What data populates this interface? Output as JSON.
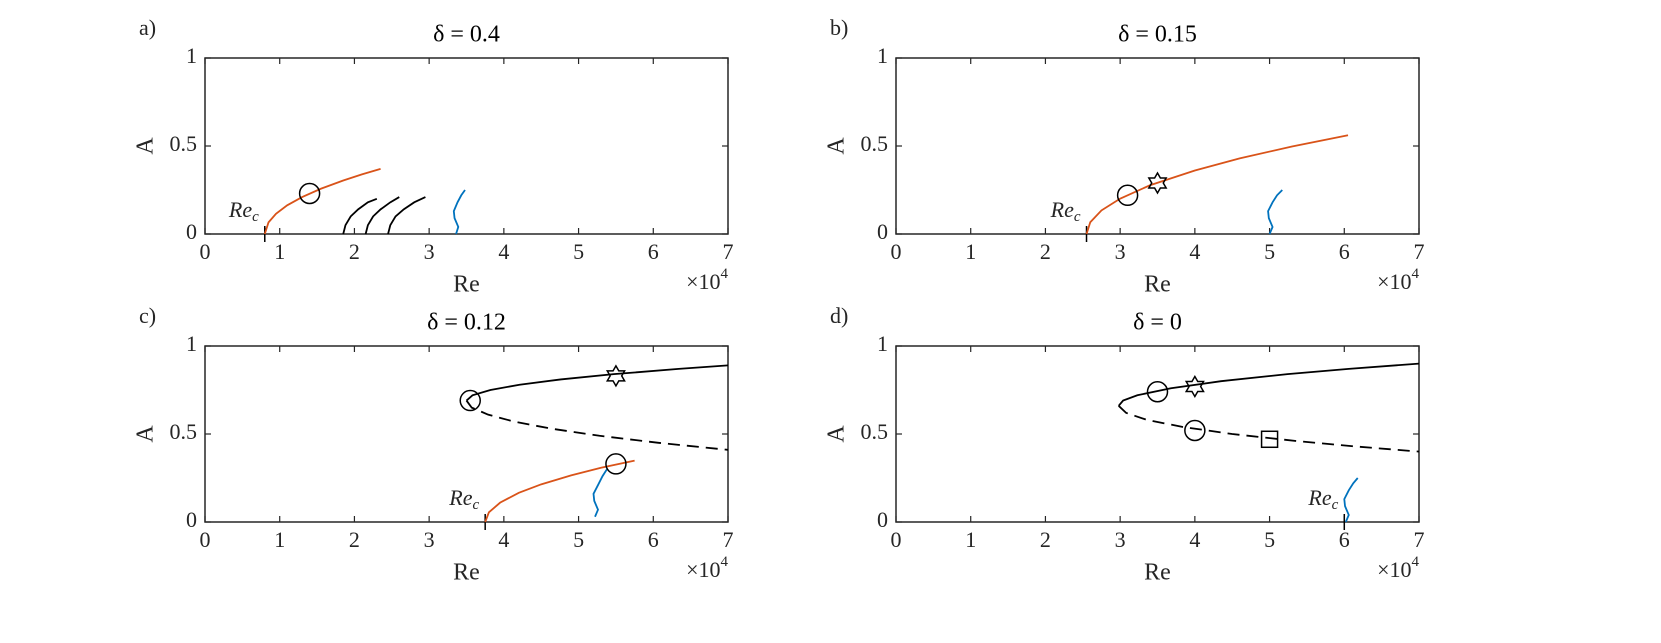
{
  "chart_data": [
    {
      "type": "line",
      "panel_label": "a)",
      "title": "δ = 0.4",
      "xlabel": "Re",
      "ylabel": "A",
      "x_multiplier": {
        "base": "×10",
        "exp": "4"
      },
      "xlim": [
        0,
        7
      ],
      "xticks": [
        0,
        1,
        2,
        3,
        4,
        5,
        6,
        7
      ],
      "ylim": [
        0,
        1
      ],
      "yticks": [
        0,
        0.5,
        1
      ],
      "critical": {
        "x": 0.8,
        "label": "Re",
        "sub": "c"
      },
      "series": [
        {
          "color": "#d95319",
          "x": [
            0.8,
            0.85,
            0.95,
            1.1,
            1.3,
            1.55,
            1.85,
            2.1,
            2.35
          ],
          "values": [
            0,
            0.066,
            0.115,
            0.163,
            0.21,
            0.257,
            0.304,
            0.339,
            0.37
          ]
        },
        {
          "color": "#000000",
          "x": [
            1.85,
            1.88,
            1.95,
            2.05,
            2.18,
            2.3
          ],
          "values": [
            0,
            0.05,
            0.1,
            0.14,
            0.18,
            0.2
          ]
        },
        {
          "color": "#000000",
          "x": [
            2.15,
            2.18,
            2.25,
            2.35,
            2.48,
            2.6
          ],
          "values": [
            0,
            0.05,
            0.1,
            0.14,
            0.18,
            0.21
          ]
        },
        {
          "color": "#000000",
          "x": [
            2.45,
            2.48,
            2.55,
            2.66,
            2.8,
            2.95
          ],
          "values": [
            0,
            0.05,
            0.1,
            0.14,
            0.18,
            0.21
          ]
        },
        {
          "color": "#0072bd",
          "x": [
            3.36,
            3.39,
            3.34,
            3.33,
            3.38,
            3.43,
            3.48
          ],
          "values": [
            0,
            0.04,
            0.09,
            0.13,
            0.18,
            0.22,
            0.25
          ]
        },
        {
          "color": "#000000",
          "marker": "circle",
          "x": [
            1.4
          ],
          "values": [
            0.23
          ]
        }
      ]
    },
    {
      "type": "line",
      "panel_label": "b)",
      "title": "δ = 0.15",
      "xlabel": "Re",
      "ylabel": "A",
      "x_multiplier": {
        "base": "×10",
        "exp": "4"
      },
      "xlim": [
        0,
        7
      ],
      "xticks": [
        0,
        1,
        2,
        3,
        4,
        5,
        6,
        7
      ],
      "ylim": [
        0,
        1
      ],
      "yticks": [
        0,
        0.5,
        1
      ],
      "critical": {
        "x": 2.55,
        "label": "Re",
        "sub": "c"
      },
      "series": [
        {
          "color": "#d95319",
          "x": [
            2.55,
            2.6,
            2.75,
            3.0,
            3.4,
            4.0,
            4.6,
            5.3,
            6.05
          ],
          "values": [
            0,
            0.067,
            0.134,
            0.201,
            0.277,
            0.361,
            0.43,
            0.497,
            0.561
          ]
        },
        {
          "color": "#0072bd",
          "x": [
            5.0,
            5.04,
            4.99,
            4.98,
            5.04,
            5.1,
            5.17
          ],
          "values": [
            0,
            0.04,
            0.09,
            0.13,
            0.18,
            0.22,
            0.25
          ]
        },
        {
          "color": "#000000",
          "marker": "circle",
          "x": [
            3.1
          ],
          "values": [
            0.22
          ]
        },
        {
          "color": "#000000",
          "marker": "star",
          "x": [
            3.5
          ],
          "values": [
            0.29
          ]
        }
      ]
    },
    {
      "type": "line",
      "panel_label": "c)",
      "title": "δ = 0.12",
      "xlabel": "Re",
      "ylabel": "A",
      "x_multiplier": {
        "base": "×10",
        "exp": "4"
      },
      "xlim": [
        0,
        7
      ],
      "xticks": [
        0,
        1,
        2,
        3,
        4,
        5,
        6,
        7
      ],
      "ylim": [
        0,
        1
      ],
      "yticks": [
        0,
        0.5,
        1
      ],
      "critical": {
        "x": 3.75,
        "label": "Re",
        "sub": "c"
      },
      "series": [
        {
          "color": "#000000",
          "x": [
            3.5,
            3.58,
            3.82,
            4.21,
            4.76,
            5.47,
            6.34,
            7.0
          ],
          "values": [
            0.69,
            0.72,
            0.75,
            0.78,
            0.81,
            0.84,
            0.87,
            0.89
          ]
        },
        {
          "color": "#000000",
          "dash": true,
          "x": [
            3.5,
            3.57,
            3.79,
            4.14,
            4.64,
            5.28,
            6.07,
            7.0
          ],
          "values": [
            0.69,
            0.65,
            0.61,
            0.57,
            0.53,
            0.49,
            0.45,
            0.41
          ]
        },
        {
          "color": "#d95319",
          "x": [
            3.75,
            3.8,
            3.95,
            4.2,
            4.5,
            4.9,
            5.3,
            5.75
          ],
          "values": [
            0,
            0.055,
            0.11,
            0.166,
            0.214,
            0.265,
            0.308,
            0.349
          ]
        },
        {
          "color": "#0072bd",
          "x": [
            5.22,
            5.26,
            5.21,
            5.2,
            5.26,
            5.32,
            5.38
          ],
          "values": [
            0.03,
            0.07,
            0.12,
            0.16,
            0.21,
            0.26,
            0.3
          ]
        },
        {
          "color": "#000000",
          "marker": "circle",
          "x": [
            3.55,
            5.5
          ],
          "values": [
            0.69,
            0.33
          ]
        },
        {
          "color": "#000000",
          "marker": "star",
          "x": [
            5.5
          ],
          "values": [
            0.83
          ]
        }
      ]
    },
    {
      "type": "line",
      "panel_label": "d)",
      "title": "δ = 0",
      "xlabel": "Re",
      "ylabel": "A",
      "x_multiplier": {
        "base": "×10",
        "exp": "4"
      },
      "xlim": [
        0,
        7
      ],
      "xticks": [
        0,
        1,
        2,
        3,
        4,
        5,
        6,
        7
      ],
      "ylim": [
        0,
        1
      ],
      "yticks": [
        0,
        0.5,
        1
      ],
      "critical": {
        "x": 6.0,
        "label": "Re",
        "sub": "c"
      },
      "series": [
        {
          "color": "#000000",
          "x": [
            2.98,
            3.04,
            3.23,
            3.68,
            4.35,
            5.24,
            6.06,
            7.0
          ],
          "values": [
            0.66,
            0.69,
            0.72,
            0.76,
            0.8,
            0.84,
            0.87,
            0.9
          ]
        },
        {
          "color": "#000000",
          "dash": true,
          "x": [
            2.98,
            3.08,
            3.36,
            3.84,
            4.5,
            5.36,
            6.13,
            7.0
          ],
          "values": [
            0.66,
            0.62,
            0.58,
            0.54,
            0.5,
            0.46,
            0.43,
            0.4
          ]
        },
        {
          "color": "#0072bd",
          "x": [
            6.02,
            6.06,
            6.01,
            6.0,
            6.06,
            6.12,
            6.18
          ],
          "values": [
            0,
            0.04,
            0.09,
            0.13,
            0.18,
            0.22,
            0.25
          ]
        },
        {
          "color": "#000000",
          "marker": "circle",
          "x": [
            3.5,
            4.0
          ],
          "values": [
            0.74,
            0.52
          ]
        },
        {
          "color": "#000000",
          "marker": "star",
          "x": [
            4.0
          ],
          "values": [
            0.77
          ]
        },
        {
          "color": "#000000",
          "marker": "square",
          "x": [
            5.0
          ],
          "values": [
            0.47
          ]
        }
      ]
    }
  ]
}
